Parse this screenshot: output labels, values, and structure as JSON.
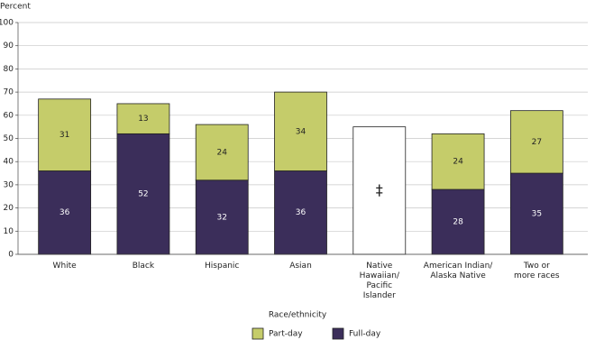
{
  "chart_data": {
    "type": "stacked-bar",
    "y_label": "Percent",
    "x_label": "Race/ethnicity",
    "categories": [
      "White",
      "Black",
      "Hispanic",
      "Asian",
      "Native\nHawaiian/\nPacific\nIslander",
      "American Indian/\nAlaska Native",
      "Two or\nmore races"
    ],
    "series": [
      {
        "name": "Full-day",
        "color": "#3b2e5a",
        "values": [
          36,
          52,
          32,
          36,
          null,
          28,
          35
        ]
      },
      {
        "name": "Part-day",
        "color": "#c5cc6a",
        "values": [
          31,
          13,
          24,
          34,
          null,
          24,
          27
        ]
      }
    ],
    "suppressed_bars": [
      {
        "category_index": 4,
        "value": 55,
        "label": "‡"
      }
    ],
    "ylim": [
      0,
      100
    ],
    "yticks": [
      0,
      10,
      20,
      30,
      40,
      50,
      60,
      70,
      80,
      90,
      100
    ],
    "grid": true
  }
}
